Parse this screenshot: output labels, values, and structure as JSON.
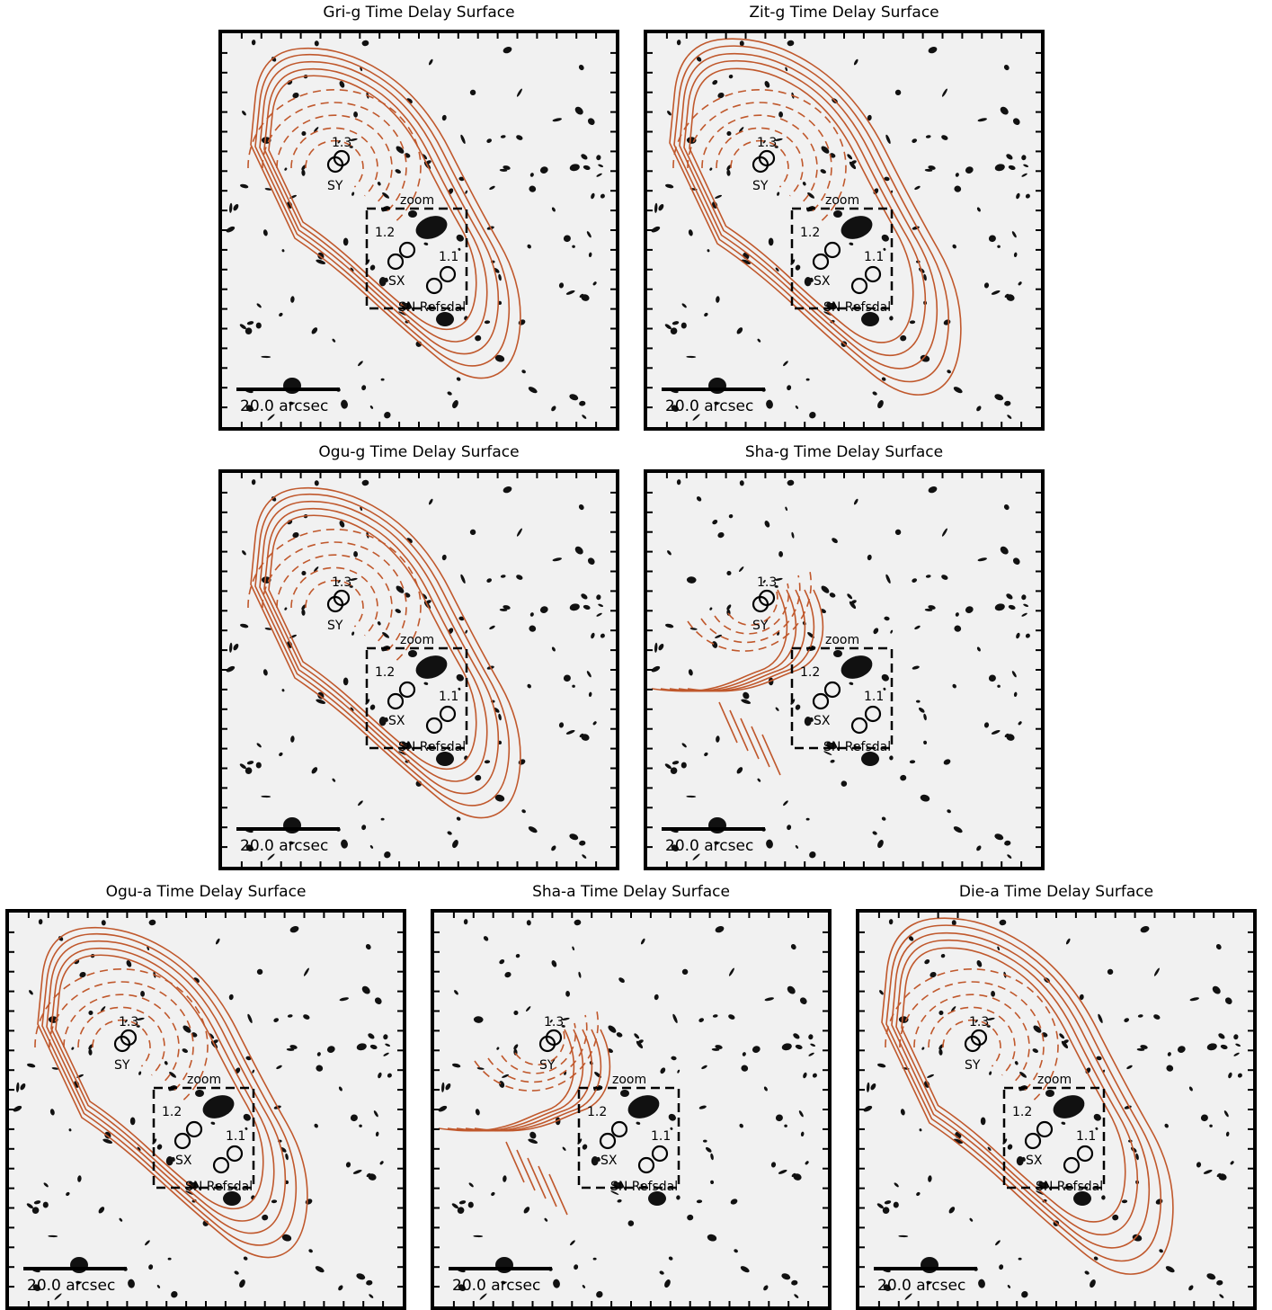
{
  "colors": {
    "contour": "#c0582c",
    "marker": "#000000",
    "background": "#f1f1f1"
  },
  "labels": {
    "zoom": "zoom",
    "scalebar": "20.0 arcsec",
    "image_1_3": "1.3",
    "image_SY": "SY",
    "image_1_2": "1.2",
    "image_1_1": "1.1",
    "image_SX": "SX",
    "sn": "SN Refsdal"
  },
  "chart_data": [
    {
      "type": "contour",
      "title": "Gri-g Time Delay Surface",
      "contour_style": "closed"
    },
    {
      "type": "contour",
      "title": "Zit-g Time Delay Surface",
      "contour_style": "closed-wide"
    },
    {
      "type": "contour",
      "title": "Ogu-g Time Delay Surface",
      "contour_style": "closed"
    },
    {
      "type": "contour",
      "title": "Sha-g Time Delay Surface",
      "contour_style": "partial"
    },
    {
      "type": "contour",
      "title": "Ogu-a Time Delay Surface",
      "contour_style": "closed"
    },
    {
      "type": "contour",
      "title": "Sha-a Time Delay Surface",
      "contour_style": "partial"
    },
    {
      "type": "contour",
      "title": "Die-a Time Delay Surface",
      "contour_style": "closed-wide"
    }
  ]
}
